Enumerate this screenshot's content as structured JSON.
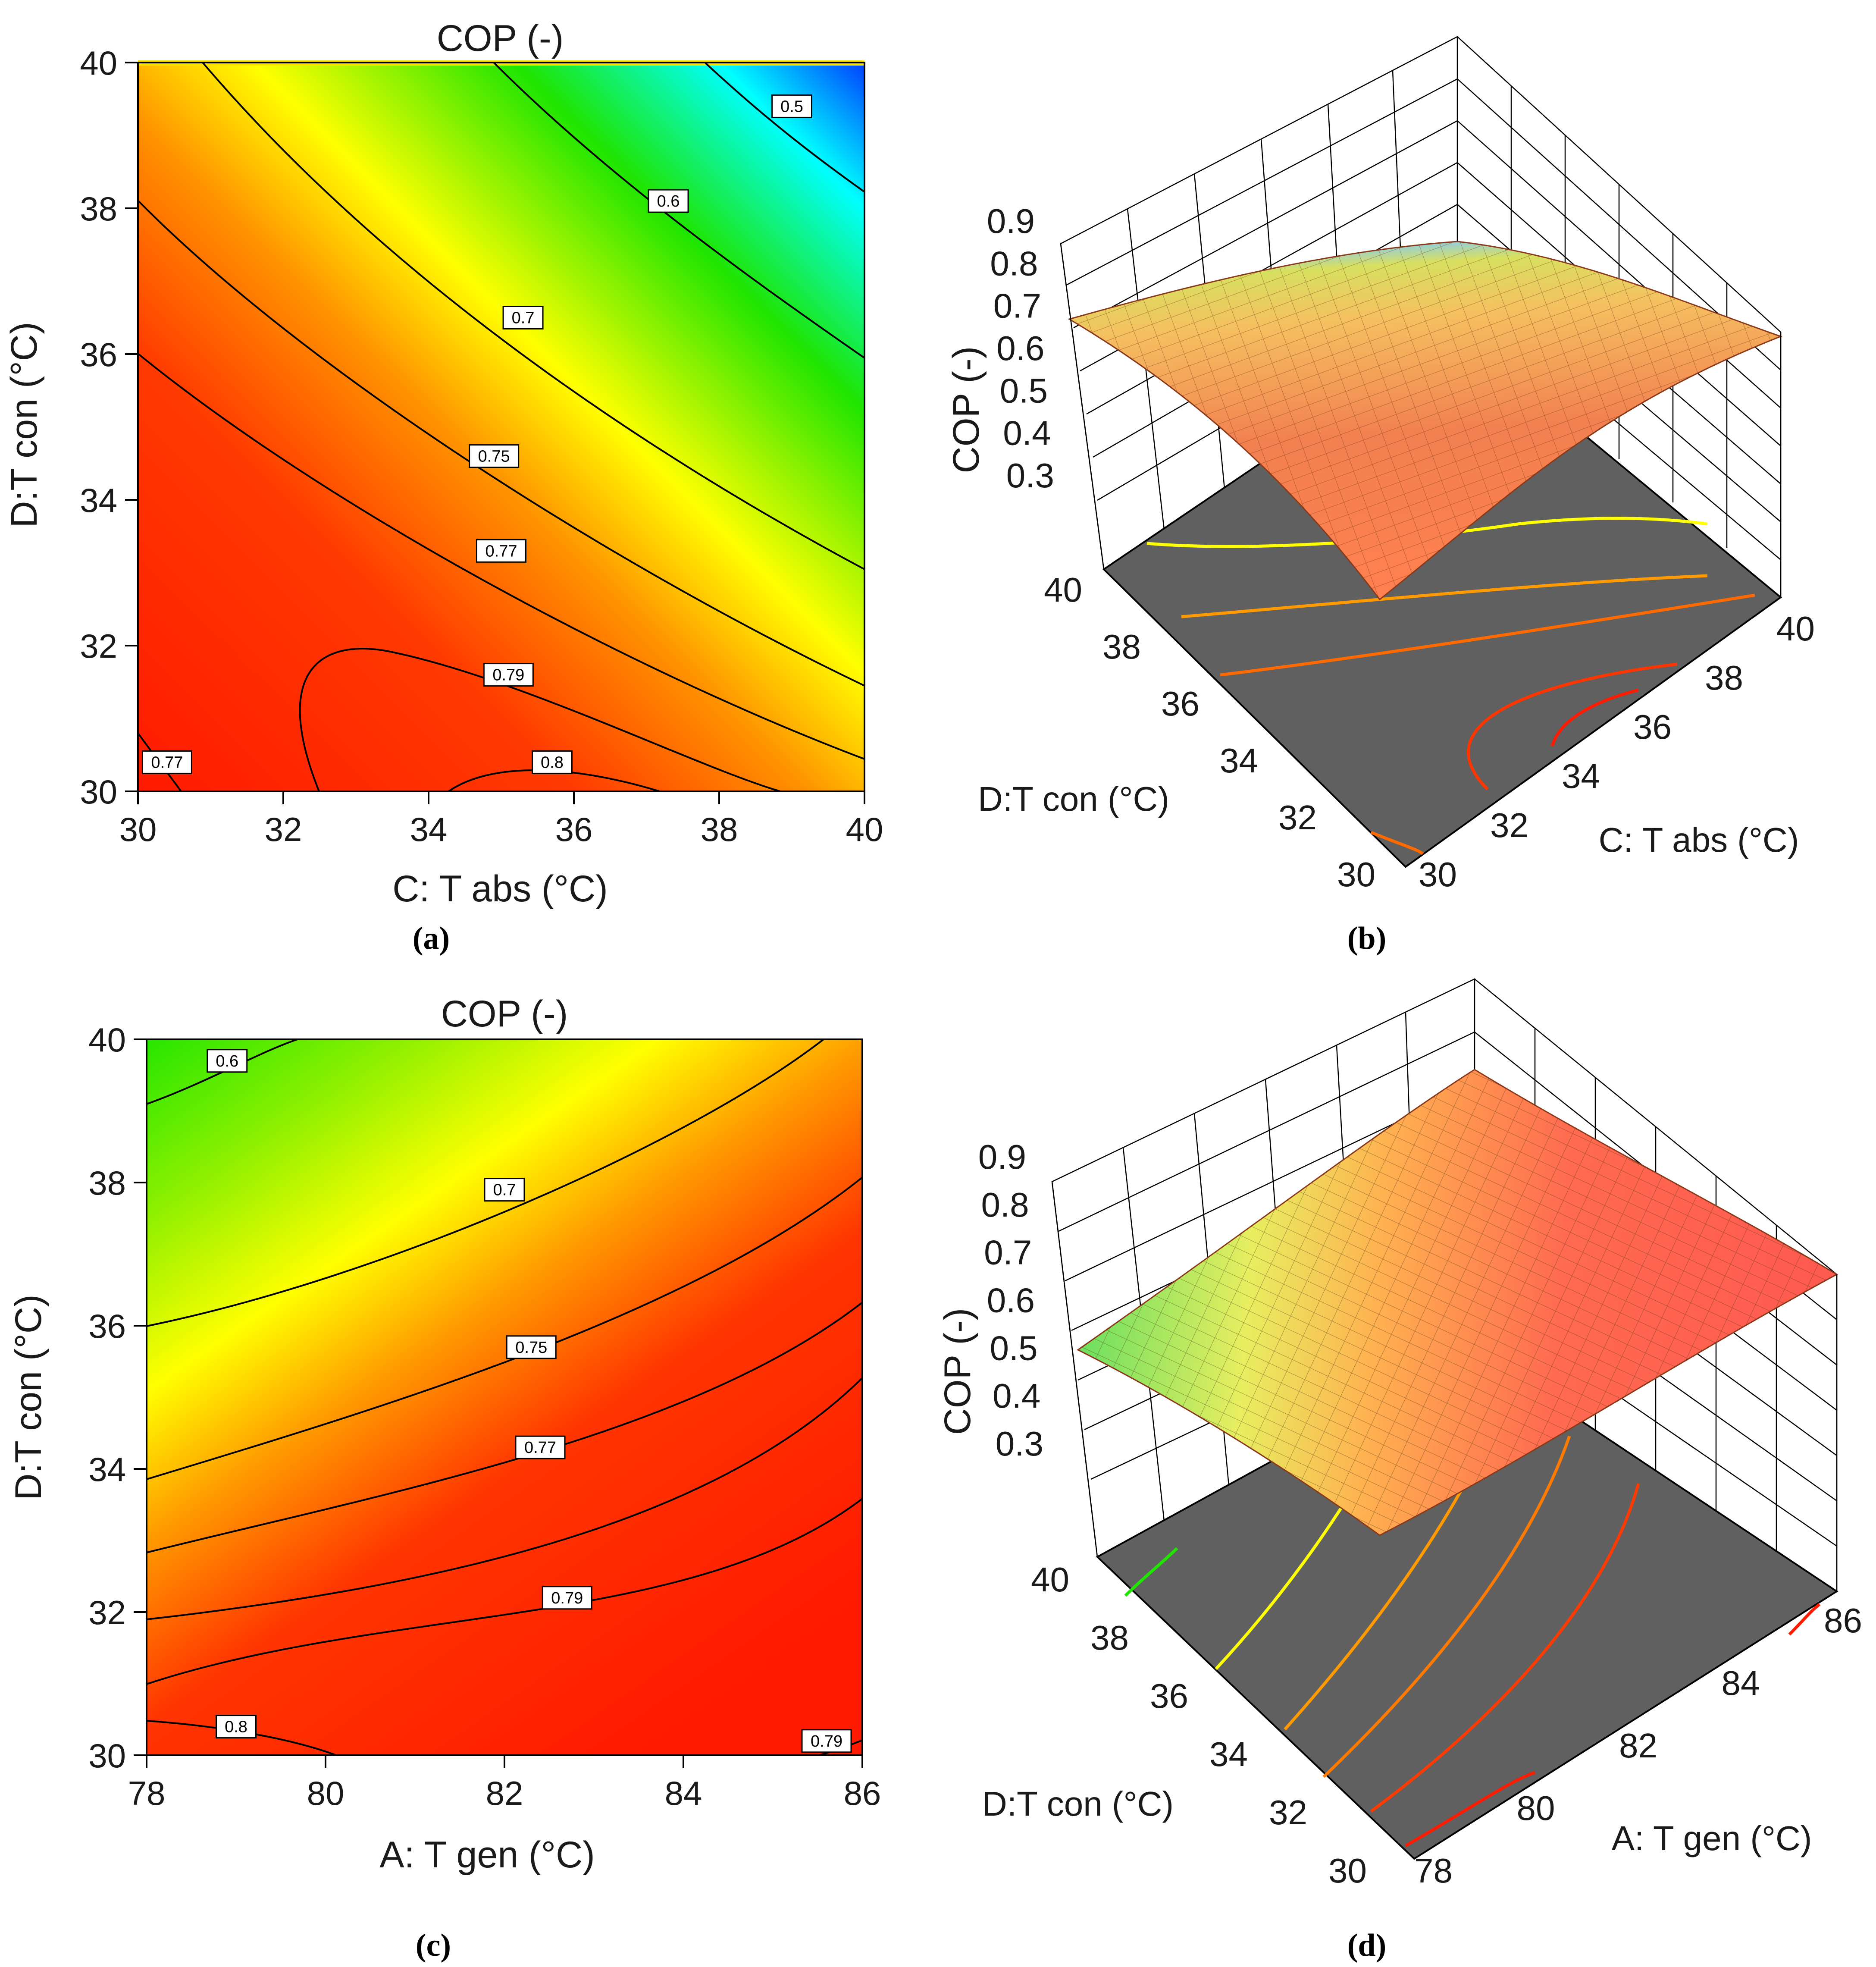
{
  "colors": {
    "red": "#ff1a00",
    "orange": "#ff7a00",
    "yellow": "#ffff00",
    "green": "#1fe500",
    "cyan": "#00ffff",
    "blue": "#0044ff",
    "floor": "#606060"
  },
  "panels": {
    "a": {
      "caption": "(a)"
    },
    "b": {
      "caption": "(b)"
    },
    "c": {
      "caption": "(c)"
    },
    "d": {
      "caption": "(d)"
    }
  },
  "chart_data": [
    {
      "id": "a",
      "type": "contour",
      "title": "COP (-)",
      "xlabel": "C: T abs (°C)",
      "ylabel": "D:T con (°C)",
      "xlim": [
        30,
        40
      ],
      "ylim": [
        30,
        40
      ],
      "xticks": [
        "30",
        "32",
        "34",
        "36",
        "38",
        "40"
      ],
      "yticks": [
        "30",
        "32",
        "34",
        "36",
        "38",
        "40"
      ],
      "contour_labels": [
        {
          "text": "0.5",
          "x": 39.0,
          "y": 39.4
        },
        {
          "text": "0.6",
          "x": 37.3,
          "y": 38.1
        },
        {
          "text": "0.7",
          "x": 35.3,
          "y": 36.5
        },
        {
          "text": "0.75",
          "x": 34.9,
          "y": 34.6
        },
        {
          "text": "0.77",
          "x": 35.0,
          "y": 33.3
        },
        {
          "text": "0.79",
          "x": 35.1,
          "y": 31.6
        },
        {
          "text": "0.8",
          "x": 35.7,
          "y": 30.4
        },
        {
          "text": "0.77",
          "x": 30.4,
          "y": 30.4
        }
      ]
    },
    {
      "id": "b",
      "type": "surface3d",
      "zlabel": "COP (-)",
      "xlabel": "C: T abs (°C)",
      "ylabel": "D:T con (°C)",
      "zticks": [
        "0.9",
        "0.8",
        "0.7",
        "0.6",
        "0.5",
        "0.4",
        "0.3"
      ],
      "xticks": [
        "30",
        "32",
        "34",
        "36",
        "38",
        "40"
      ],
      "yticks": [
        "40",
        "38",
        "36",
        "34",
        "32",
        "30"
      ],
      "zrange": [
        0.3,
        0.9
      ]
    },
    {
      "id": "c",
      "type": "contour",
      "title": "COP (-)",
      "xlabel": "A: T gen (°C)",
      "ylabel": "D:T con (°C)",
      "xlim": [
        78,
        86
      ],
      "ylim": [
        30,
        40
      ],
      "xticks": [
        "78",
        "80",
        "82",
        "84",
        "86"
      ],
      "yticks": [
        "30",
        "32",
        "34",
        "36",
        "38",
        "40"
      ],
      "contour_labels": [
        {
          "text": "0.6",
          "x": 78.9,
          "y": 39.7
        },
        {
          "text": "0.7",
          "x": 82.0,
          "y": 37.9
        },
        {
          "text": "0.75",
          "x": 82.3,
          "y": 35.7
        },
        {
          "text": "0.77",
          "x": 82.4,
          "y": 34.3
        },
        {
          "text": "0.79",
          "x": 82.7,
          "y": 32.2
        },
        {
          "text": "0.8",
          "x": 79.0,
          "y": 30.4
        },
        {
          "text": "0.79",
          "x": 85.6,
          "y": 30.2
        }
      ]
    },
    {
      "id": "d",
      "type": "surface3d",
      "zlabel": "COP (-)",
      "xlabel": "A: T gen (°C)",
      "ylabel": "D:T con (°C)",
      "zticks": [
        "0.9",
        "0.8",
        "0.7",
        "0.6",
        "0.5",
        "0.4",
        "0.3"
      ],
      "xticks": [
        "78",
        "80",
        "82",
        "84",
        "86"
      ],
      "yticks": [
        "40",
        "38",
        "36",
        "34",
        "32",
        "30"
      ],
      "zrange": [
        0.3,
        0.9
      ]
    }
  ]
}
